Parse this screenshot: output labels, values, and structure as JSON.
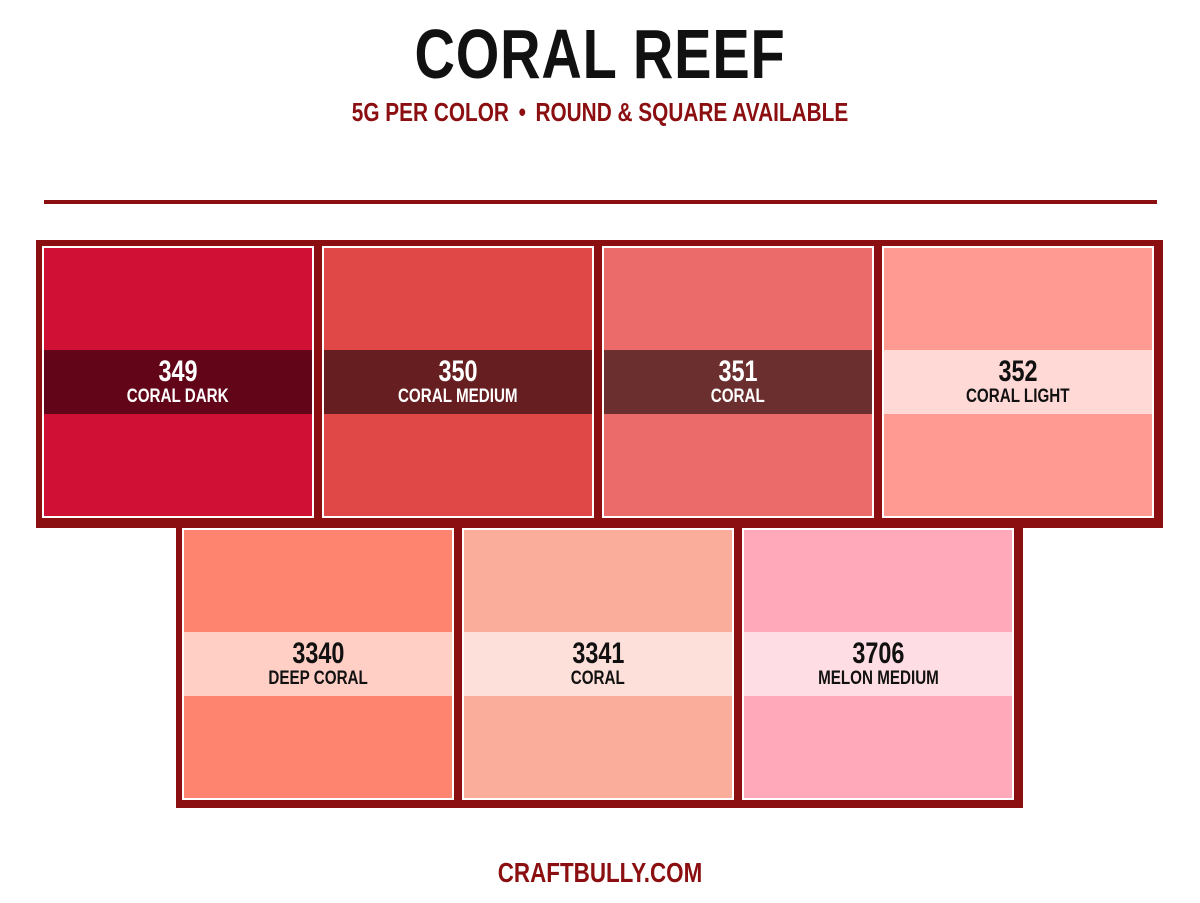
{
  "header": {
    "title": "CORAL REEF",
    "subtitle_left": "5G PER COLOR",
    "subtitle_separator": "•",
    "subtitle_right": "ROUND & SQUARE AVAILABLE"
  },
  "colors": {
    "accent": "#8b0e10",
    "title": "#111111"
  },
  "swatches_row1": [
    {
      "code": "349",
      "name": "CORAL DARK",
      "fill": "#d01035",
      "band": "#620518",
      "text": "#ffffff"
    },
    {
      "code": "350",
      "name": "CORAL MEDIUM",
      "fill": "#e04848",
      "band": "#661e20",
      "text": "#ffffff"
    },
    {
      "code": "351",
      "name": "CORAL",
      "fill": "#ea6b69",
      "band": "#6c2f2f",
      "text": "#ffffff"
    },
    {
      "code": "352",
      "name": "CORAL LIGHT",
      "fill": "#ff9a92",
      "band": "#ffd9d6",
      "text": "#111111"
    }
  ],
  "swatches_row2": [
    {
      "code": "3340",
      "name": "DEEP CORAL",
      "fill": "#ff8470",
      "band": "#ffcfc6",
      "text": "#111111"
    },
    {
      "code": "3341",
      "name": "CORAL",
      "fill": "#fbad9c",
      "band": "#fee0da",
      "text": "#111111"
    },
    {
      "code": "3706",
      "name": "MELON MEDIUM",
      "fill": "#ffa9ba",
      "band": "#ffdde4",
      "text": "#111111"
    }
  ],
  "footer": {
    "site": "CRAFTBULLY.COM"
  }
}
